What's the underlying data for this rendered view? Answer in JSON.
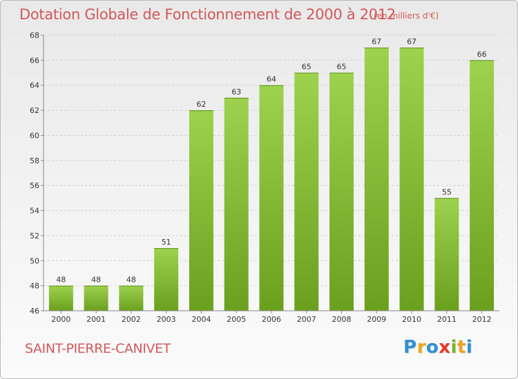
{
  "header": {
    "title": "Dotation Globale de Fonctionnement de 2000 à 2012",
    "unit": "(en milliers d'€)"
  },
  "footer": {
    "commune": "SAINT-PIERRE-CANIVET",
    "logo_letters": [
      "P",
      "r",
      "o",
      "x",
      "i",
      "t",
      "i"
    ],
    "logo_colors": [
      "#2f8fd6",
      "#f2a21d",
      "#2f8fd6",
      "#e63a2a",
      "#79b528",
      "#f2a21d",
      "#2f8fd6"
    ]
  },
  "chart_data": {
    "type": "bar",
    "title": "Dotation Globale de Fonctionnement de 2000 à 2012",
    "unit": "(en milliers d'€)",
    "categories": [
      "2000",
      "2001",
      "2002",
      "2003",
      "2004",
      "2005",
      "2006",
      "2007",
      "2008",
      "2009",
      "2010",
      "2011",
      "2012"
    ],
    "values": [
      48,
      48,
      48,
      51,
      62,
      63,
      64,
      65,
      65,
      67,
      67,
      55,
      66
    ],
    "ylim": [
      46,
      68
    ],
    "yticks": [
      46,
      48,
      50,
      52,
      54,
      56,
      58,
      60,
      62,
      64,
      66,
      68
    ],
    "grid": true,
    "legend": "none",
    "colors": {
      "bar_light": "#9dd24e",
      "bar_dark": "#6aa01e",
      "grid": "#cfcfcf",
      "label": "#333333"
    }
  }
}
